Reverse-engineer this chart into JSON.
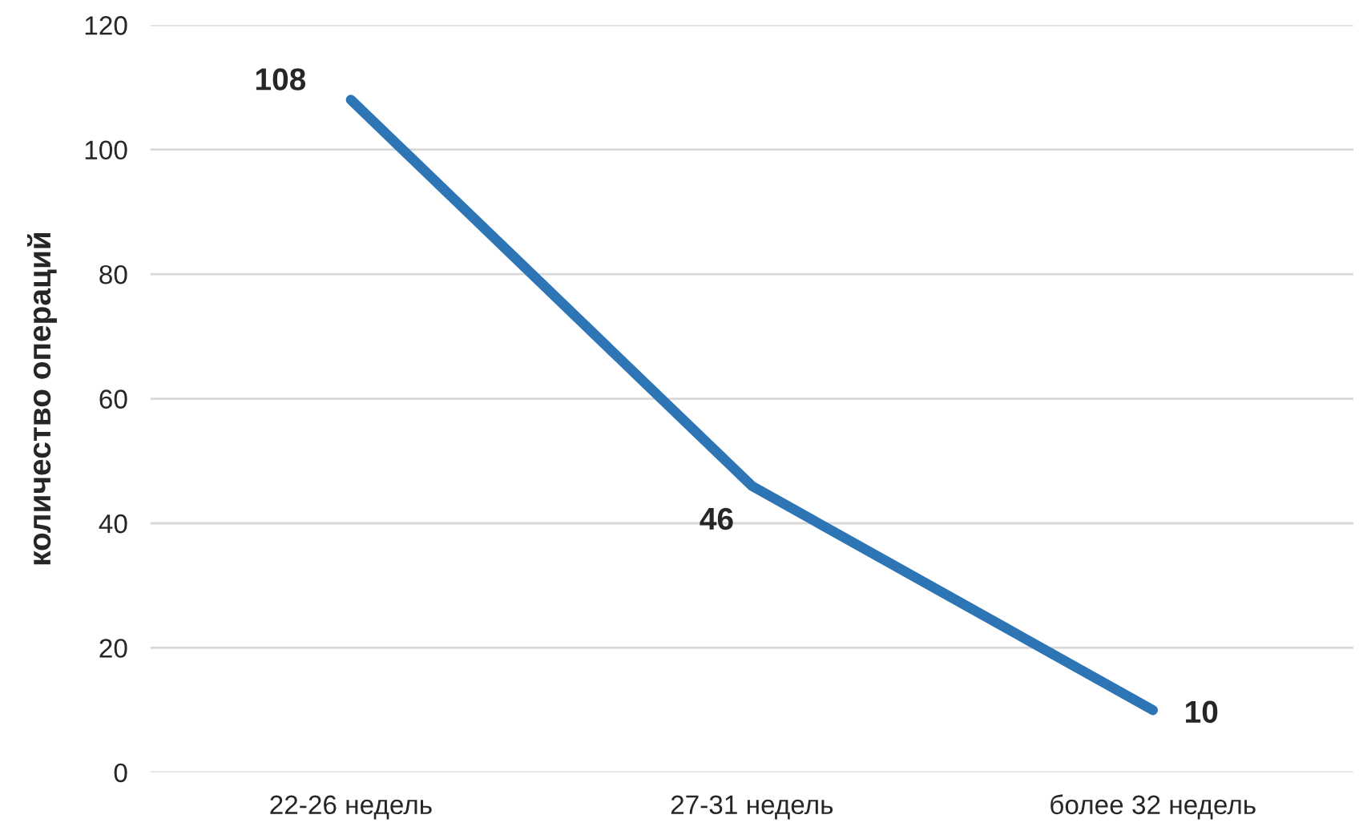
{
  "chart_data": {
    "type": "line",
    "ylabel": "количество операций",
    "categories": [
      "22-26 недель",
      "27-31 недель",
      "более 32 недель"
    ],
    "series": [
      {
        "color": "#2e75b6",
        "values": [
          108,
          46,
          10
        ]
      }
    ],
    "ylim": [
      0,
      120
    ],
    "yticks": [
      0,
      20,
      40,
      60,
      80,
      100,
      120
    ],
    "grid": "y",
    "data_labels": true,
    "marker": "none",
    "line_style": "solid",
    "legend": false
  }
}
